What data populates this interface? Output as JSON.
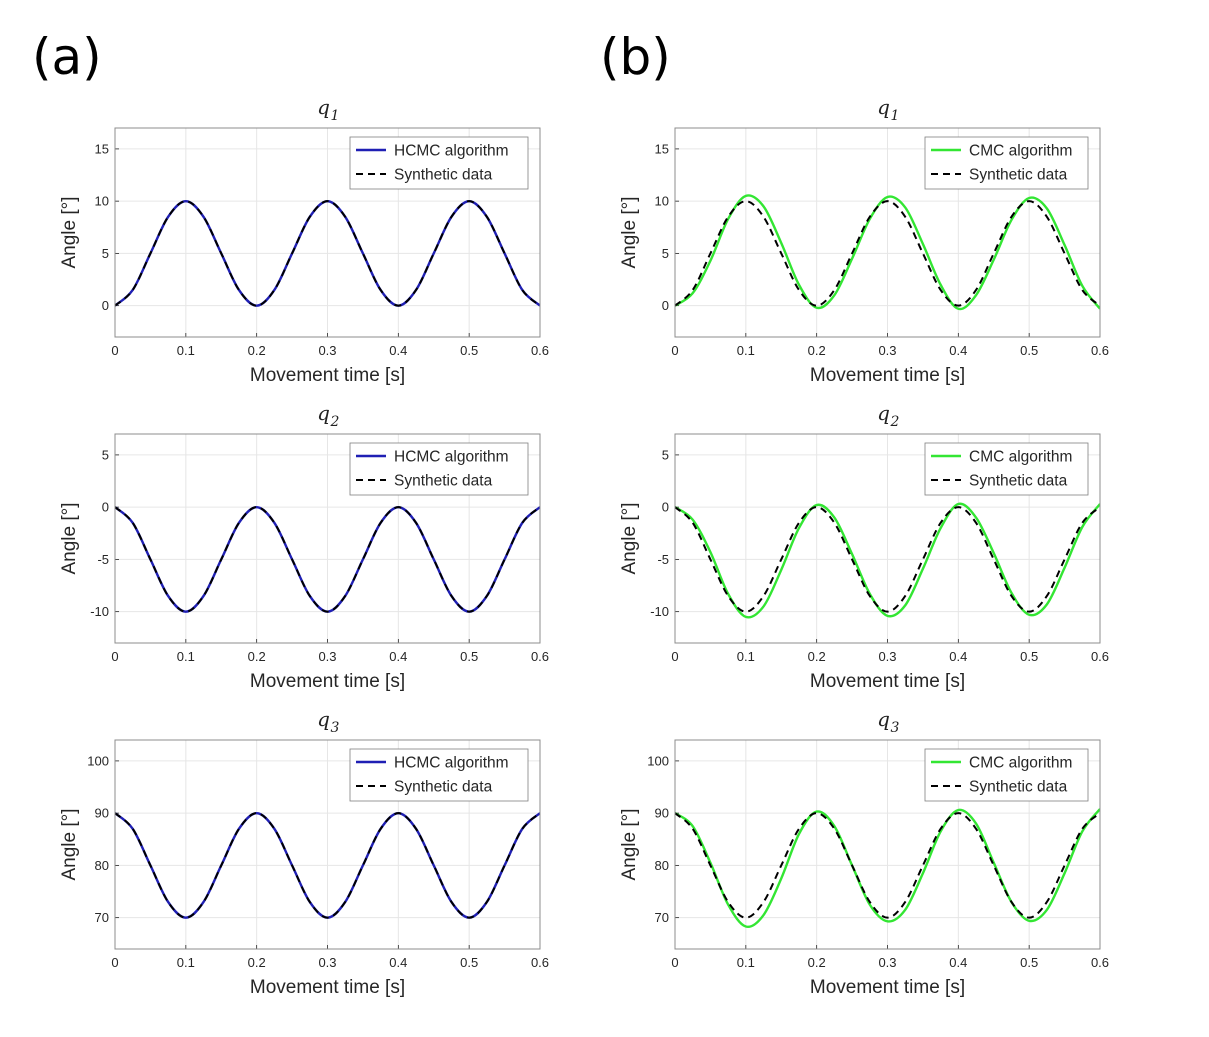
{
  "panel_labels": [
    "(a)",
    "(b)"
  ],
  "chart_data": [
    {
      "type": "line",
      "panel": "(a)",
      "title": "q",
      "title_sub": "1",
      "xlabel": "Movement time [s]",
      "ylabel": "Angle [°]",
      "xlim": [
        0,
        0.6
      ],
      "ylim": [
        -3,
        17
      ],
      "xticks": [
        "0",
        "0.1",
        "0.2",
        "0.3",
        "0.4",
        "0.5",
        "0.6"
      ],
      "yticks": [
        "0",
        "5",
        "10",
        "15"
      ],
      "grid": true,
      "legend_position": "top-right",
      "series": [
        {
          "name": "HCMC algorithm",
          "color": "#1f1fb4",
          "style": "solid",
          "x": [
            0,
            0.025,
            0.05,
            0.075,
            0.1,
            0.125,
            0.15,
            0.175,
            0.2,
            0.225,
            0.25,
            0.275,
            0.3,
            0.325,
            0.35,
            0.375,
            0.4,
            0.425,
            0.45,
            0.475,
            0.5,
            0.525,
            0.55,
            0.575,
            0.6
          ],
          "y": [
            0,
            1.5,
            5,
            8.5,
            10,
            8.5,
            5,
            1.5,
            0,
            1.5,
            5,
            8.5,
            10,
            8.5,
            5,
            1.5,
            0,
            1.5,
            5,
            8.5,
            10,
            8.5,
            5,
            1.5,
            0
          ]
        },
        {
          "name": "Synthetic data",
          "color": "#000000",
          "style": "dashed",
          "x": [
            0,
            0.025,
            0.05,
            0.075,
            0.1,
            0.125,
            0.15,
            0.175,
            0.2,
            0.225,
            0.25,
            0.275,
            0.3,
            0.325,
            0.35,
            0.375,
            0.4,
            0.425,
            0.45,
            0.475,
            0.5,
            0.525,
            0.55,
            0.575,
            0.6
          ],
          "y": [
            0,
            1.5,
            5,
            8.5,
            10,
            8.5,
            5,
            1.5,
            0,
            1.5,
            5,
            8.5,
            10,
            8.5,
            5,
            1.5,
            0,
            1.5,
            5,
            8.5,
            10,
            8.5,
            5,
            1.5,
            0
          ]
        }
      ]
    },
    {
      "type": "line",
      "panel": "(a)",
      "title": "q",
      "title_sub": "2",
      "xlabel": "Movement time [s]",
      "ylabel": "Angle [°]",
      "xlim": [
        0,
        0.6
      ],
      "ylim": [
        -13,
        7
      ],
      "xticks": [
        "0",
        "0.1",
        "0.2",
        "0.3",
        "0.4",
        "0.5",
        "0.6"
      ],
      "yticks": [
        "-10",
        "-5",
        "0",
        "5"
      ],
      "grid": true,
      "legend_position": "top-right",
      "series": [
        {
          "name": "HCMC algorithm",
          "color": "#1f1fb4",
          "style": "solid",
          "x": [
            0,
            0.025,
            0.05,
            0.075,
            0.1,
            0.125,
            0.15,
            0.175,
            0.2,
            0.225,
            0.25,
            0.275,
            0.3,
            0.325,
            0.35,
            0.375,
            0.4,
            0.425,
            0.45,
            0.475,
            0.5,
            0.525,
            0.55,
            0.575,
            0.6
          ],
          "y": [
            0,
            -1.5,
            -5,
            -8.5,
            -10,
            -8.5,
            -5,
            -1.5,
            0,
            -1.5,
            -5,
            -8.5,
            -10,
            -8.5,
            -5,
            -1.5,
            0,
            -1.5,
            -5,
            -8.5,
            -10,
            -8.5,
            -5,
            -1.5,
            0
          ]
        },
        {
          "name": "Synthetic data",
          "color": "#000000",
          "style": "dashed",
          "x": [
            0,
            0.025,
            0.05,
            0.075,
            0.1,
            0.125,
            0.15,
            0.175,
            0.2,
            0.225,
            0.25,
            0.275,
            0.3,
            0.325,
            0.35,
            0.375,
            0.4,
            0.425,
            0.45,
            0.475,
            0.5,
            0.525,
            0.55,
            0.575,
            0.6
          ],
          "y": [
            0,
            -1.5,
            -5,
            -8.5,
            -10,
            -8.5,
            -5,
            -1.5,
            0,
            -1.5,
            -5,
            -8.5,
            -10,
            -8.5,
            -5,
            -1.5,
            0,
            -1.5,
            -5,
            -8.5,
            -10,
            -8.5,
            -5,
            -1.5,
            0
          ]
        }
      ]
    },
    {
      "type": "line",
      "panel": "(a)",
      "title": "q",
      "title_sub": "3",
      "xlabel": "Movement time [s]",
      "ylabel": "Angle [°]",
      "xlim": [
        0,
        0.6
      ],
      "ylim": [
        64,
        104
      ],
      "xticks": [
        "0",
        "0.1",
        "0.2",
        "0.3",
        "0.4",
        "0.5",
        "0.6"
      ],
      "yticks": [
        "70",
        "80",
        "90",
        "100"
      ],
      "grid": true,
      "legend_position": "top-right",
      "series": [
        {
          "name": "HCMC algorithm",
          "color": "#1f1fb4",
          "style": "solid",
          "x": [
            0,
            0.025,
            0.05,
            0.075,
            0.1,
            0.125,
            0.15,
            0.175,
            0.2,
            0.225,
            0.25,
            0.275,
            0.3,
            0.325,
            0.35,
            0.375,
            0.4,
            0.425,
            0.45,
            0.475,
            0.5,
            0.525,
            0.55,
            0.575,
            0.6
          ],
          "y": [
            90,
            87,
            80,
            73,
            70,
            73,
            80,
            87,
            90,
            87,
            80,
            73,
            70,
            73,
            80,
            87,
            90,
            87,
            80,
            73,
            70,
            73,
            80,
            87,
            90
          ]
        },
        {
          "name": "Synthetic data",
          "color": "#000000",
          "style": "dashed",
          "x": [
            0,
            0.025,
            0.05,
            0.075,
            0.1,
            0.125,
            0.15,
            0.175,
            0.2,
            0.225,
            0.25,
            0.275,
            0.3,
            0.325,
            0.35,
            0.375,
            0.4,
            0.425,
            0.45,
            0.475,
            0.5,
            0.525,
            0.55,
            0.575,
            0.6
          ],
          "y": [
            90,
            87,
            80,
            73,
            70,
            73,
            80,
            87,
            90,
            87,
            80,
            73,
            70,
            73,
            80,
            87,
            90,
            87,
            80,
            73,
            70,
            73,
            80,
            87,
            90
          ]
        }
      ]
    },
    {
      "type": "line",
      "panel": "(b)",
      "title": "q",
      "title_sub": "1",
      "xlabel": "Movement time [s]",
      "ylabel": "Angle [°]",
      "xlim": [
        0,
        0.6
      ],
      "ylim": [
        -3,
        17
      ],
      "xticks": [
        "0",
        "0.1",
        "0.2",
        "0.3",
        "0.4",
        "0.5",
        "0.6"
      ],
      "yticks": [
        "0",
        "5",
        "10",
        "15"
      ],
      "grid": true,
      "legend_position": "top-right",
      "series": [
        {
          "name": "CMC algorithm",
          "color": "#33e633",
          "style": "solid",
          "x": [
            0,
            0.025,
            0.05,
            0.075,
            0.1,
            0.125,
            0.15,
            0.175,
            0.2,
            0.225,
            0.25,
            0.275,
            0.3,
            0.325,
            0.35,
            0.375,
            0.4,
            0.425,
            0.45,
            0.475,
            0.5,
            0.525,
            0.55,
            0.575,
            0.6
          ],
          "y": [
            0,
            1.2,
            4.3,
            8.3,
            10.5,
            9.5,
            6.0,
            2.0,
            -0.2,
            1.0,
            4.5,
            8.3,
            10.4,
            9.4,
            5.9,
            2.0,
            -0.3,
            1.0,
            4.4,
            8.2,
            10.3,
            9.3,
            5.8,
            1.9,
            -0.3
          ]
        },
        {
          "name": "Synthetic data",
          "color": "#000000",
          "style": "dashed",
          "x": [
            0,
            0.025,
            0.05,
            0.075,
            0.1,
            0.125,
            0.15,
            0.175,
            0.2,
            0.225,
            0.25,
            0.275,
            0.3,
            0.325,
            0.35,
            0.375,
            0.4,
            0.425,
            0.45,
            0.475,
            0.5,
            0.525,
            0.55,
            0.575,
            0.6
          ],
          "y": [
            0,
            1.5,
            5,
            8.5,
            10,
            8.5,
            5,
            1.5,
            0,
            1.5,
            5,
            8.5,
            10,
            8.5,
            5,
            1.5,
            0,
            1.5,
            5,
            8.5,
            10,
            8.5,
            5,
            1.5,
            0
          ]
        }
      ]
    },
    {
      "type": "line",
      "panel": "(b)",
      "title": "q",
      "title_sub": "2",
      "xlabel": "Movement time [s]",
      "ylabel": "Angle [°]",
      "xlim": [
        0,
        0.6
      ],
      "ylim": [
        -13,
        7
      ],
      "xticks": [
        "0",
        "0.1",
        "0.2",
        "0.3",
        "0.4",
        "0.5",
        "0.6"
      ],
      "yticks": [
        "-10",
        "-5",
        "0",
        "5"
      ],
      "grid": true,
      "legend_position": "top-right",
      "series": [
        {
          "name": "CMC algorithm",
          "color": "#33e633",
          "style": "solid",
          "x": [
            0,
            0.025,
            0.05,
            0.075,
            0.1,
            0.125,
            0.15,
            0.175,
            0.2,
            0.225,
            0.25,
            0.275,
            0.3,
            0.325,
            0.35,
            0.375,
            0.4,
            0.425,
            0.45,
            0.475,
            0.5,
            0.525,
            0.55,
            0.575,
            0.6
          ],
          "y": [
            0,
            -1.2,
            -4.3,
            -8.3,
            -10.5,
            -9.5,
            -6.0,
            -2.0,
            0.2,
            -1.0,
            -4.5,
            -8.3,
            -10.4,
            -9.4,
            -5.9,
            -2.0,
            0.3,
            -1.0,
            -4.4,
            -8.2,
            -10.3,
            -9.3,
            -5.8,
            -1.9,
            0.3
          ]
        },
        {
          "name": "Synthetic data",
          "color": "#000000",
          "style": "dashed",
          "x": [
            0,
            0.025,
            0.05,
            0.075,
            0.1,
            0.125,
            0.15,
            0.175,
            0.2,
            0.225,
            0.25,
            0.275,
            0.3,
            0.325,
            0.35,
            0.375,
            0.4,
            0.425,
            0.45,
            0.475,
            0.5,
            0.525,
            0.55,
            0.575,
            0.6
          ],
          "y": [
            0,
            -1.5,
            -5,
            -8.5,
            -10,
            -8.5,
            -5,
            -1.5,
            0,
            -1.5,
            -5,
            -8.5,
            -10,
            -8.5,
            -5,
            -1.5,
            0,
            -1.5,
            -5,
            -8.5,
            -10,
            -8.5,
            -5,
            -1.5,
            0
          ]
        }
      ]
    },
    {
      "type": "line",
      "panel": "(b)",
      "title": "q",
      "title_sub": "3",
      "xlabel": "Movement time [s]",
      "ylabel": "Angle [°]",
      "xlim": [
        0,
        0.6
      ],
      "ylim": [
        64,
        104
      ],
      "xticks": [
        "0",
        "0.1",
        "0.2",
        "0.3",
        "0.4",
        "0.5",
        "0.6"
      ],
      "yticks": [
        "70",
        "80",
        "90",
        "100"
      ],
      "grid": true,
      "legend_position": "top-right",
      "series": [
        {
          "name": "CMC algorithm",
          "color": "#33e633",
          "style": "solid",
          "x": [
            0,
            0.025,
            0.05,
            0.075,
            0.1,
            0.125,
            0.15,
            0.175,
            0.2,
            0.225,
            0.25,
            0.275,
            0.3,
            0.325,
            0.35,
            0.375,
            0.4,
            0.425,
            0.45,
            0.475,
            0.5,
            0.525,
            0.55,
            0.575,
            0.6
          ],
          "y": [
            90,
            87.5,
            80.5,
            72.5,
            68.3,
            70.5,
            77.5,
            86.0,
            90.3,
            87.5,
            80.0,
            72.5,
            69.3,
            71.5,
            78.5,
            86.5,
            90.6,
            88.0,
            80.5,
            73.0,
            69.4,
            71.5,
            78.5,
            86.5,
            90.8
          ]
        },
        {
          "name": "Synthetic data",
          "color": "#000000",
          "style": "dashed",
          "x": [
            0,
            0.025,
            0.05,
            0.075,
            0.1,
            0.125,
            0.15,
            0.175,
            0.2,
            0.225,
            0.25,
            0.275,
            0.3,
            0.325,
            0.35,
            0.375,
            0.4,
            0.425,
            0.45,
            0.475,
            0.5,
            0.525,
            0.55,
            0.575,
            0.6
          ],
          "y": [
            90,
            87,
            80,
            73,
            70,
            73,
            80,
            87,
            90,
            87,
            80,
            73,
            70,
            73,
            80,
            87,
            90,
            87,
            80,
            73,
            70,
            73,
            80,
            87,
            90
          ]
        }
      ]
    }
  ]
}
